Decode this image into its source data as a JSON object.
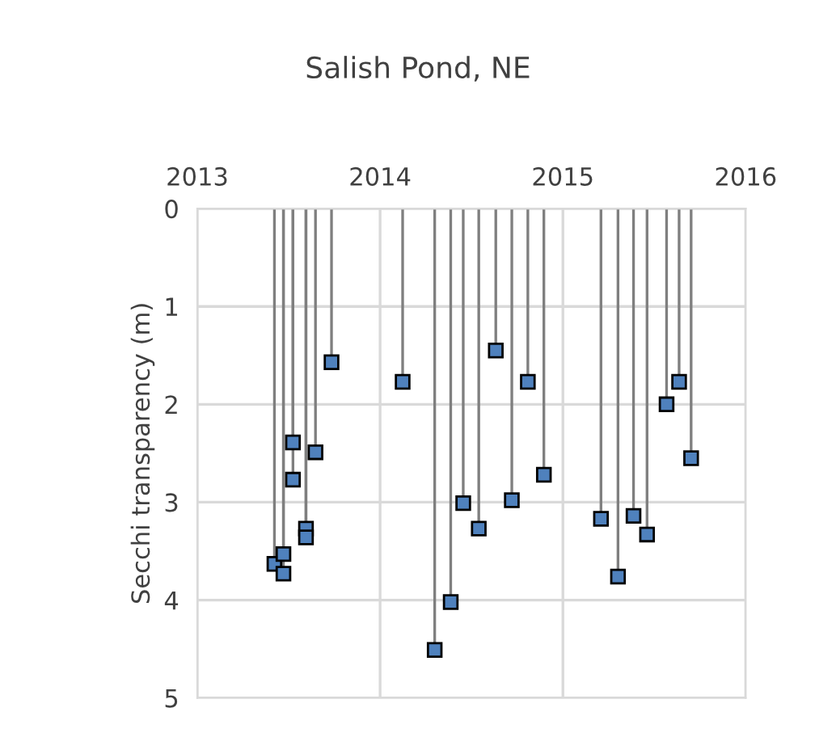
{
  "chart_data": {
    "type": "lollipop",
    "title": "Salish Pond, NE",
    "ylabel": "Secchi transparency (m)",
    "x": [
      "2013-06-04",
      "2013-06-22",
      "2013-06-22",
      "2013-07-11",
      "2013-07-11",
      "2013-08-06",
      "2013-08-06",
      "2013-08-25",
      "2013-09-26",
      "2014-02-15",
      "2014-04-20",
      "2014-05-22",
      "2014-06-16",
      "2014-07-17",
      "2014-08-20",
      "2014-09-21",
      "2014-10-23",
      "2014-11-24",
      "2015-03-18",
      "2015-04-21",
      "2015-05-22",
      "2015-06-18",
      "2015-07-27",
      "2015-08-21",
      "2015-09-14"
    ],
    "values": [
      3.63,
      3.53,
      3.73,
      2.39,
      2.77,
      3.27,
      3.36,
      2.49,
      1.57,
      1.77,
      4.51,
      4.02,
      3.01,
      3.27,
      1.45,
      2.98,
      1.77,
      2.72,
      3.17,
      3.76,
      3.14,
      3.33,
      2.0,
      1.77,
      2.55
    ],
    "color": "#4f81bd",
    "marker": "square",
    "xlim": [
      "2013-01-01",
      "2016-01-01"
    ],
    "xticks": [
      {
        "value": "2013-01-01",
        "label": "2013"
      },
      {
        "value": "2014-01-01",
        "label": "2014"
      },
      {
        "value": "2015-01-01",
        "label": "2015"
      },
      {
        "value": "2016-01-01",
        "label": "2016"
      }
    ],
    "ylim": [
      5,
      0
    ],
    "yticks": [
      0,
      1,
      2,
      3,
      4,
      5
    ],
    "grid": true
  }
}
